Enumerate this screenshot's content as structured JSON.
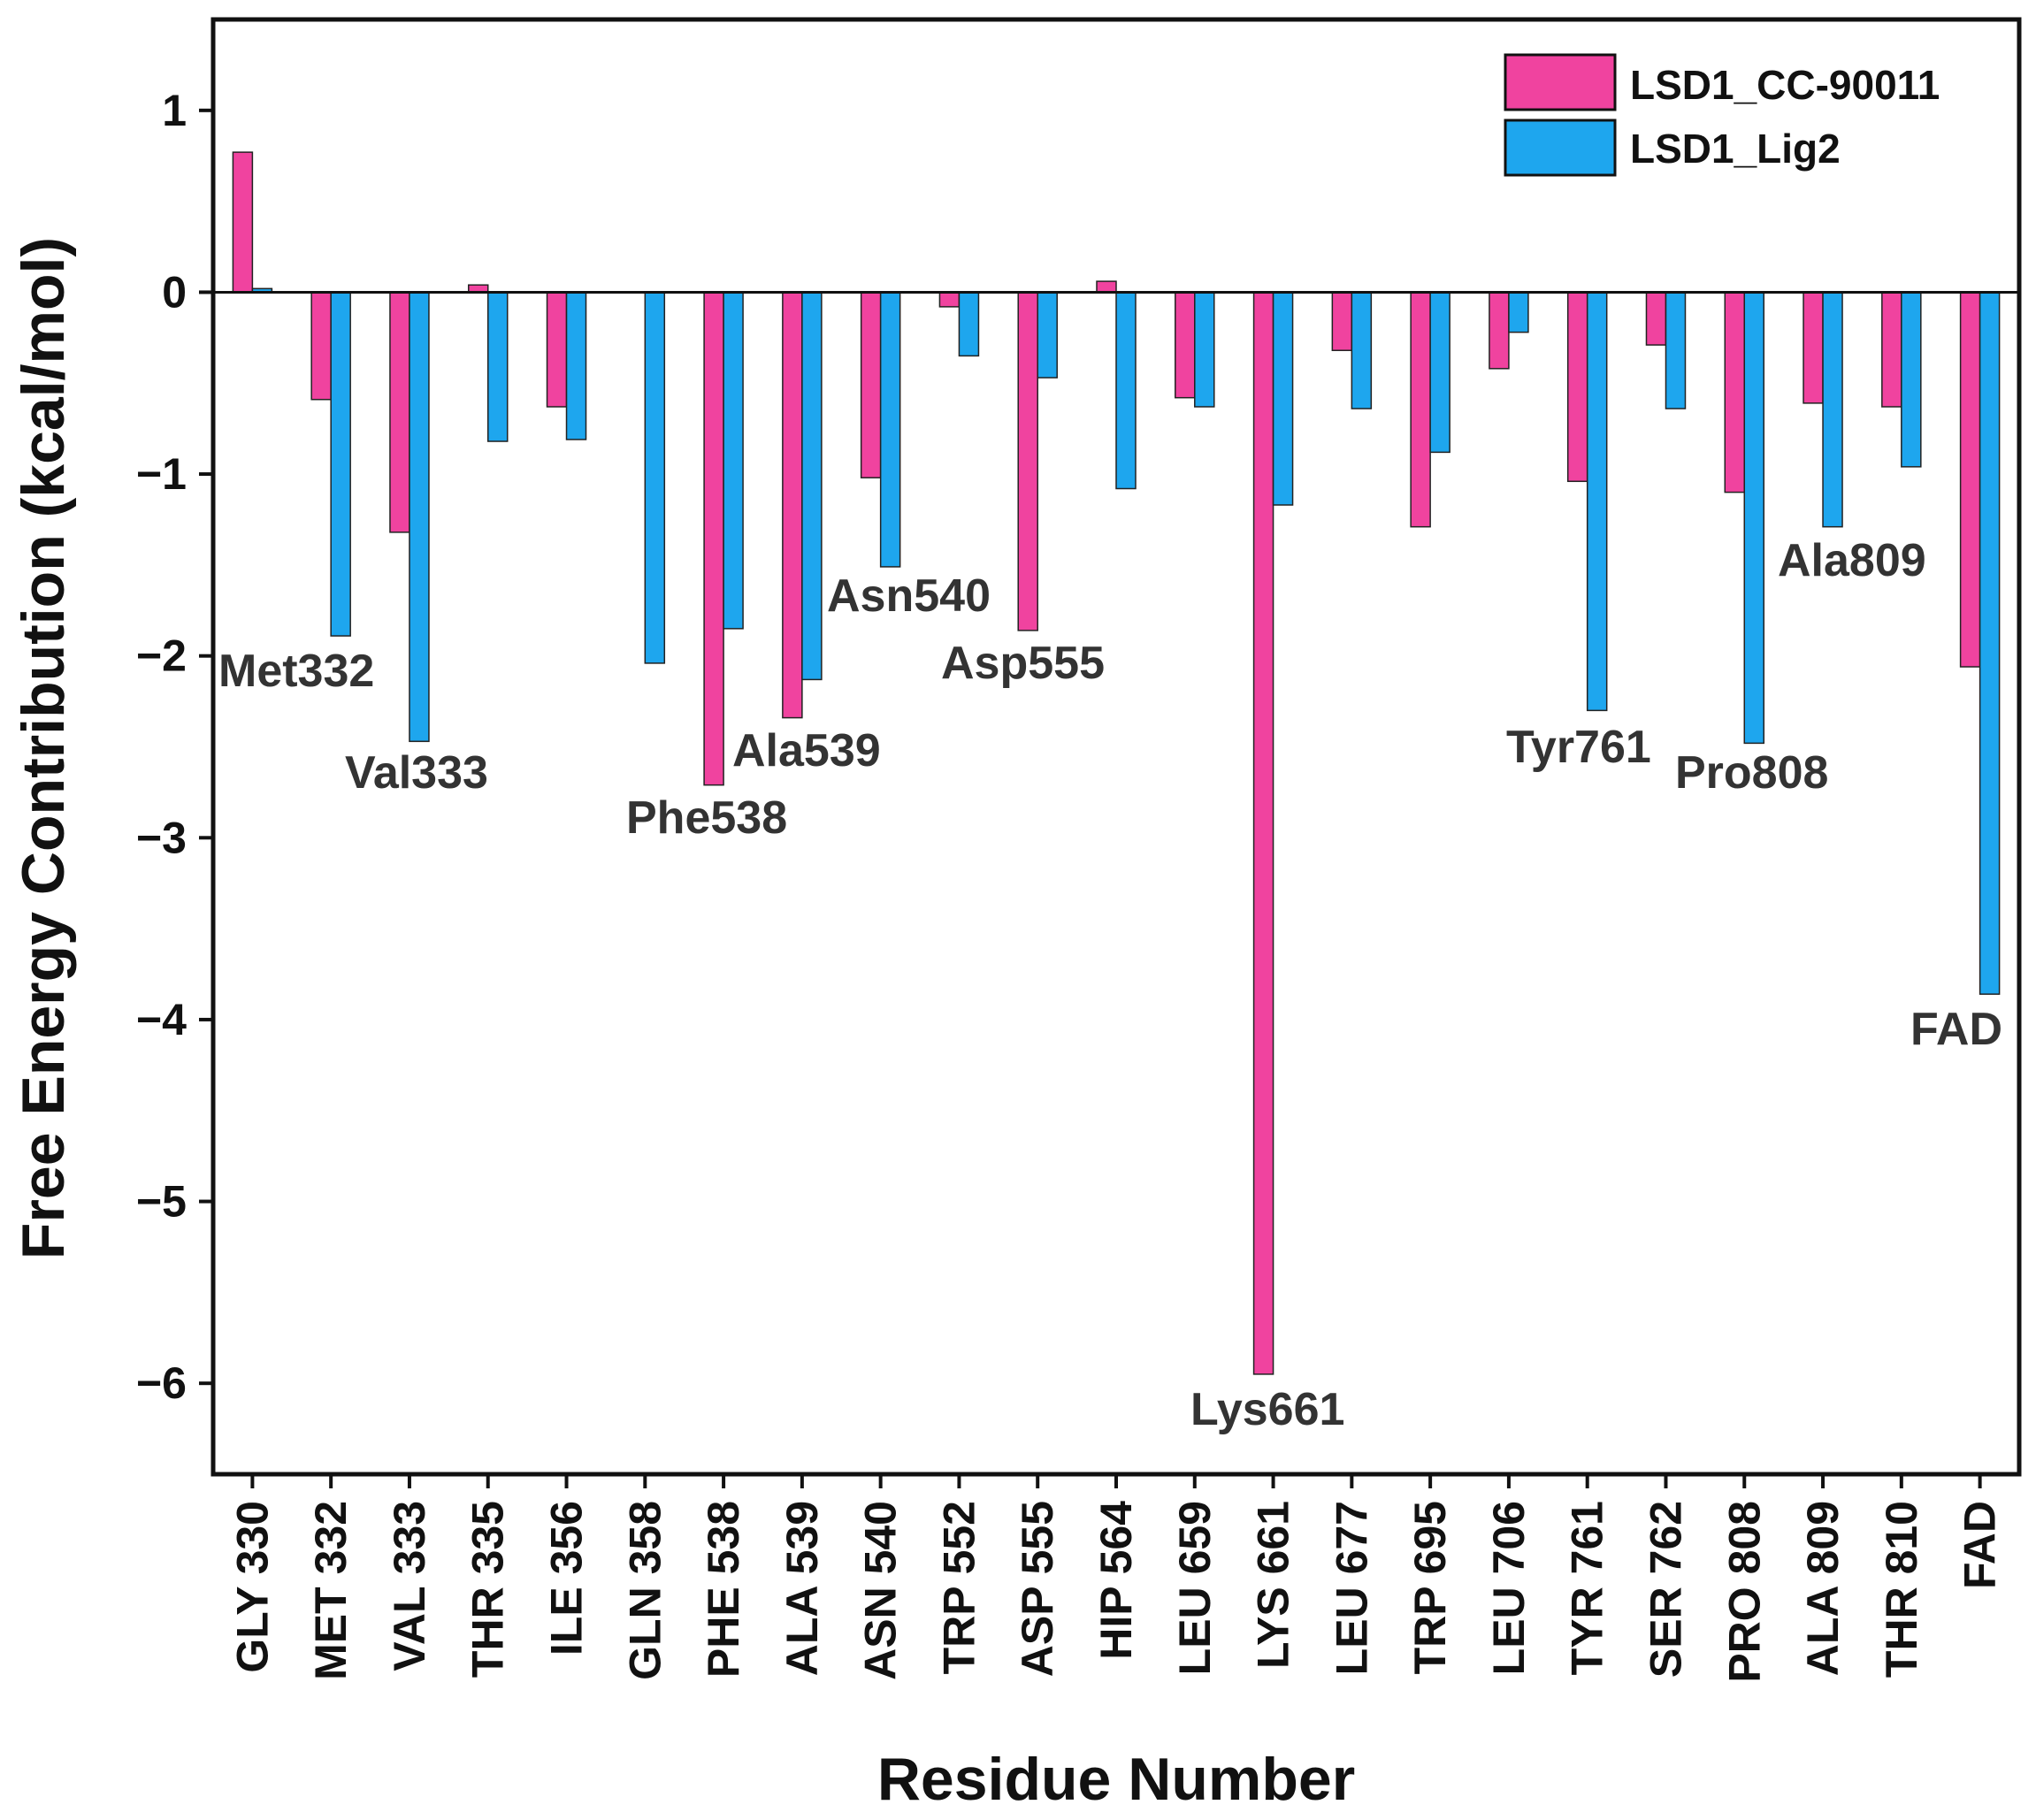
{
  "chart_data": {
    "type": "bar",
    "title": "",
    "xlabel": "Residue Number",
    "ylabel": "Free Energy Contribution (kcal/mol)",
    "ylim": [
      -6.5,
      1.5
    ],
    "yticks": [
      1,
      0,
      -1,
      -2,
      -3,
      -4,
      -5,
      -6
    ],
    "ytick_labels": [
      "1",
      "0",
      "−1",
      "−2",
      "−3",
      "−4",
      "−5",
      "−6"
    ],
    "grid": false,
    "legend_position": "top-right",
    "categories": [
      "GLY 330",
      "MET 332",
      "VAL 333",
      "THR 335",
      "ILE 356",
      "GLN 358",
      "PHE 538",
      "ALA 539",
      "ASN 540",
      "TRP 552",
      "ASP 555",
      "HIP 564",
      "LEU 659",
      "LYS 661",
      "LEU 677",
      "TRP 695",
      "LEU 706",
      "TYR 761",
      "SER 762",
      "PRO 808",
      "ALA 809",
      "THR 810",
      "FAD"
    ],
    "series": [
      {
        "name": "LSD1_CC-90011",
        "color": "#f0439f",
        "values": [
          0.77,
          -0.59,
          -1.32,
          0.04,
          -0.63,
          0.0,
          -2.71,
          -2.34,
          -1.02,
          -0.08,
          -1.86,
          0.06,
          -0.58,
          -5.95,
          -0.32,
          -1.29,
          -0.42,
          -1.04,
          -0.29,
          -1.1,
          -0.61,
          -0.63,
          -2.06
        ]
      },
      {
        "name": "LSD1_Lig2",
        "color": "#1ea6ee",
        "values": [
          0.02,
          -1.89,
          -2.47,
          -0.82,
          -0.81,
          -2.04,
          -1.85,
          -2.13,
          -1.51,
          -0.35,
          -0.47,
          -1.08,
          -0.63,
          -1.17,
          -0.64,
          -0.88,
          -0.22,
          -2.3,
          -0.64,
          -2.48,
          -1.29,
          -0.96,
          -3.86
        ]
      }
    ],
    "annotations": [
      "Met332",
      "Val333",
      "Phe538",
      "Ala539",
      "Asn540",
      "Asp555",
      "Lys661",
      "Tyr761",
      "Pro808",
      "Ala809",
      "FAD"
    ]
  }
}
